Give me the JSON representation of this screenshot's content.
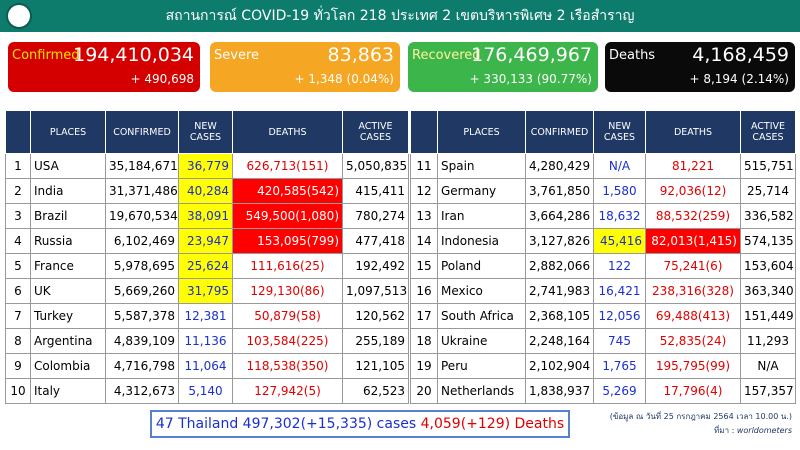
{
  "header": {
    "title": "สถานการณ์ COVID-19 ทั่วโลก 218 ประเทศ 2 เขตบริหารพิเศษ 2 เรือสำราญ"
  },
  "cards": [
    {
      "label": "Confirmed",
      "value": "194,410,034",
      "delta": "+ 490,698"
    },
    {
      "label": "Severe",
      "value": "83,863",
      "delta": "+ 1,348 (0.04%)"
    },
    {
      "label": "Recovered",
      "value": "176,469,967",
      "delta": "+ 330,133 (90.77%)"
    },
    {
      "label": "Deaths",
      "value": "4,168,459",
      "delta": "+ 8,194 (2.14%)"
    }
  ],
  "tables": [
    {
      "columns": [
        "PLACES",
        "CONFIRMED",
        "NEW CASES",
        "DEATHS",
        "ACTIVE CASES"
      ],
      "rows": [
        [
          "1",
          "USA",
          "35,184,671",
          "36,779",
          "626,713(151)",
          "5,050,835"
        ],
        [
          "2",
          "India",
          "31,371,486",
          "40,284",
          "420,585(542)",
          "415,411"
        ],
        [
          "3",
          "Brazil",
          "19,670,534",
          "38,091",
          "549,500(1,080)",
          "780,274"
        ],
        [
          "4",
          "Russia",
          "6,102,469",
          "23,947",
          "153,095(799)",
          "477,418"
        ],
        [
          "5",
          "France",
          "5,978,695",
          "25,624",
          "111,616(25)",
          "192,492"
        ],
        [
          "6",
          "UK",
          "5,669,260",
          "31,795",
          "129,130(86)",
          "1,097,513"
        ],
        [
          "7",
          "Turkey",
          "5,587,378",
          "12,381",
          "50,879(58)",
          "120,562"
        ],
        [
          "8",
          "Argentina",
          "4,839,109",
          "11,136",
          "103,584(225)",
          "255,189"
        ],
        [
          "9",
          "Colombia",
          "4,716,798",
          "11,064",
          "118,538(350)",
          "121,105"
        ],
        [
          "10",
          "Italy",
          "4,312,673",
          "5,140",
          "127,942(5)",
          "62,523"
        ]
      ]
    },
    {
      "columns": [
        "PLACES",
        "CONFIRMED",
        "NEW CASES",
        "DEATHS",
        "ACTIVE CASES"
      ],
      "rows": [
        [
          "11",
          "Spain",
          "4,280,429",
          "N/A",
          "81,221",
          "515,751"
        ],
        [
          "12",
          "Germany",
          "3,761,850",
          "1,580",
          "92,036(12)",
          "25,714"
        ],
        [
          "13",
          "Iran",
          "3,664,286",
          "18,632",
          "88,532(259)",
          "336,582"
        ],
        [
          "14",
          "Indonesia",
          "3,127,826",
          "45,416",
          "82,013(1,415)",
          "574,135"
        ],
        [
          "15",
          "Poland",
          "2,882,066",
          "122",
          "75,241(6)",
          "153,604"
        ],
        [
          "16",
          "Mexico",
          "2,741,983",
          "16,421",
          "238,316(328)",
          "363,340"
        ],
        [
          "17",
          "South Africa",
          "2,368,105",
          "12,056",
          "69,488(413)",
          "151,449"
        ],
        [
          "18",
          "Ukraine",
          "2,248,164",
          "745",
          "52,835(24)",
          "11,293"
        ],
        [
          "19",
          "Peru",
          "2,102,904",
          "1,765",
          "195,795(99)",
          "N/A"
        ],
        [
          "20",
          "Netherlands",
          "1,838,937",
          "5,269",
          "17,796(4)",
          "157,357"
        ]
      ]
    }
  ],
  "footer": {
    "thailand_cases": "47 Thailand 497,302(+15,335) cases",
    "thailand_deaths": "4,059(+129) Deaths",
    "note": "(ข้อมูล ณ วันที่ 25 กรกฎาคม 2564 เวลา 10.00 น.)",
    "source_label": "ที่มา :",
    "source": "worldometers"
  }
}
